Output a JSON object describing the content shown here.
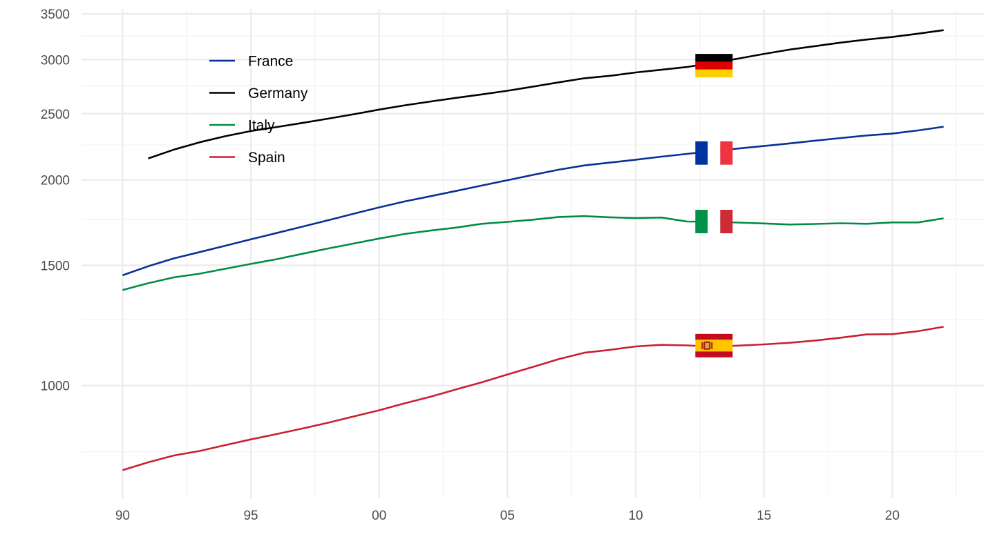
{
  "chart_data": {
    "type": "line",
    "title": "",
    "xlabel": "",
    "ylabel": "",
    "y_scale": "log",
    "xlim": [
      1988.4,
      2023.6
    ],
    "ylim": [
      700,
      3600
    ],
    "x_ticks": [
      {
        "value": 1990,
        "label": "90"
      },
      {
        "value": 1995,
        "label": "95"
      },
      {
        "value": 2000,
        "label": "00"
      },
      {
        "value": 2005,
        "label": "05"
      },
      {
        "value": 2010,
        "label": "10"
      },
      {
        "value": 2015,
        "label": "15"
      },
      {
        "value": 2020,
        "label": "20"
      }
    ],
    "x_minor_ticks": [
      1992.5,
      1997.5,
      2002.5,
      2007.5,
      2012.5,
      2017.5,
      2022.5
    ],
    "y_ticks": [
      {
        "value": 1000,
        "label": "1000"
      },
      {
        "value": 1500,
        "label": "1500"
      },
      {
        "value": 2000,
        "label": "2000"
      },
      {
        "value": 2500,
        "label": "2500"
      },
      {
        "value": 3000,
        "label": "3000"
      },
      {
        "value": 3500,
        "label": "3500"
      }
    ],
    "y_minor_ticks": [
      800,
      1250,
      1750,
      2250,
      2750,
      3250
    ],
    "grid": true,
    "legend": {
      "position": "top-left-inside"
    },
    "series": [
      {
        "name": "France",
        "color": "#0a2f96",
        "flag": "france-flag",
        "x": [
          1990,
          1991,
          1992,
          1993,
          1994,
          1995,
          1996,
          1997,
          1998,
          1999,
          2000,
          2001,
          2002,
          2003,
          2004,
          2005,
          2006,
          2007,
          2008,
          2009,
          2010,
          2011,
          2012,
          2013,
          2014,
          2015,
          2016,
          2017,
          2018,
          2019,
          2020,
          2021,
          2022
        ],
        "values": [
          1450,
          1495,
          1535,
          1568,
          1602,
          1637,
          1672,
          1708,
          1745,
          1784,
          1823,
          1860,
          1893,
          1927,
          1962,
          1998,
          2034,
          2070,
          2100,
          2120,
          2141,
          2163,
          2183,
          2204,
          2223,
          2242,
          2262,
          2283,
          2303,
          2323,
          2338,
          2363,
          2393
        ]
      },
      {
        "name": "Germany",
        "color": "#000000",
        "flag": "germany-flag",
        "x": [
          1991,
          1992,
          1993,
          1994,
          1995,
          1996,
          1997,
          1998,
          1999,
          2000,
          2001,
          2002,
          2003,
          2004,
          2005,
          2006,
          2007,
          2008,
          2009,
          2010,
          2011,
          2012,
          2013,
          2014,
          2015,
          2016,
          2017,
          2018,
          2019,
          2020,
          2021,
          2022
        ],
        "values": [
          2150,
          2215,
          2270,
          2317,
          2358,
          2390,
          2423,
          2458,
          2495,
          2535,
          2572,
          2605,
          2637,
          2668,
          2701,
          2739,
          2779,
          2817,
          2841,
          2873,
          2899,
          2926,
          2968,
          3010,
          3058,
          3103,
          3140,
          3177,
          3210,
          3238,
          3274,
          3313
        ]
      },
      {
        "name": "Italy",
        "color": "#008c45",
        "flag": "italy-flag",
        "x": [
          1990,
          1991,
          1992,
          1993,
          1994,
          1995,
          1996,
          1997,
          1998,
          1999,
          2000,
          2001,
          2002,
          2003,
          2004,
          2005,
          2006,
          2007,
          2008,
          2009,
          2010,
          2011,
          2012,
          2013,
          2014,
          2015,
          2016,
          2017,
          2018,
          2019,
          2020,
          2021,
          2022
        ],
        "values": [
          1380,
          1412,
          1440,
          1458,
          1482,
          1507,
          1531,
          1559,
          1587,
          1614,
          1641,
          1667,
          1686,
          1703,
          1725,
          1736,
          1749,
          1765,
          1770,
          1763,
          1759,
          1762,
          1738,
          1737,
          1732,
          1727,
          1721,
          1724,
          1728,
          1725,
          1733,
          1733,
          1757
        ]
      },
      {
        "name": "Spain",
        "color": "#c8202f",
        "flag": "spain-flag",
        "x": [
          1990,
          1991,
          1992,
          1993,
          1994,
          1995,
          1996,
          1997,
          1998,
          1999,
          2000,
          2001,
          2002,
          2003,
          2004,
          2005,
          2006,
          2007,
          2008,
          2009,
          2010,
          2011,
          2012,
          2013,
          2014,
          2015,
          2016,
          2017,
          2018,
          2019,
          2020,
          2021,
          2022
        ],
        "values": [
          752,
          772,
          790,
          802,
          818,
          834,
          849,
          865,
          882,
          901,
          920,
          942,
          963,
          987,
          1011,
          1038,
          1065,
          1093,
          1117,
          1128,
          1141,
          1147,
          1145,
          1140,
          1144,
          1149,
          1155,
          1164,
          1175,
          1188,
          1189,
          1201,
          1219
        ]
      }
    ],
    "flags": [
      {
        "id": "germany-flag",
        "value": 2940
      },
      {
        "id": "france-flag",
        "value": 2190
      },
      {
        "id": "italy-flag",
        "value": 1738
      },
      {
        "id": "spain-flag",
        "value": 1144
      }
    ],
    "flags_x": 2013.05
  }
}
